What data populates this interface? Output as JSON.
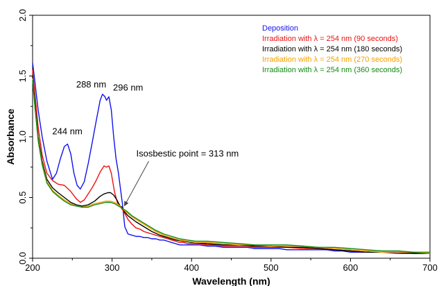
{
  "chart_data": {
    "type": "line",
    "xlabel": "Wavelength (nm)",
    "ylabel": "Absorbance",
    "xlim": [
      200,
      700
    ],
    "ylim": [
      0.0,
      2.0
    ],
    "x_ticks": [
      "200",
      "300",
      "400",
      "500",
      "600",
      "700"
    ],
    "y_ticks": [
      "0.0",
      "0.5",
      "1.0",
      "1.5",
      "2.0"
    ],
    "grid": false,
    "legend_position": "top-right",
    "series": [
      {
        "name": "Deposition",
        "color": "#1010ee",
        "x": [
          200,
          203,
          207,
          212,
          218,
          225,
          230,
          235,
          240,
          244,
          248,
          252,
          256,
          260,
          265,
          270,
          275,
          280,
          285,
          288,
          291,
          293,
          296,
          299,
          302,
          305,
          308,
          311,
          313,
          316,
          320,
          325,
          330,
          335,
          340,
          345,
          350,
          355,
          360,
          365,
          370,
          375,
          380,
          385,
          390,
          395,
          400,
          410,
          420,
          430,
          440,
          450,
          460,
          470,
          480,
          490,
          500,
          510,
          520,
          530,
          540,
          550,
          560,
          570,
          580,
          590,
          600,
          620,
          640,
          660,
          680,
          700
        ],
        "y": [
          1.61,
          1.45,
          1.22,
          1.0,
          0.8,
          0.65,
          0.7,
          0.82,
          0.92,
          0.94,
          0.86,
          0.7,
          0.6,
          0.57,
          0.63,
          0.78,
          0.95,
          1.13,
          1.3,
          1.35,
          1.33,
          1.3,
          1.33,
          1.22,
          1.0,
          0.82,
          0.7,
          0.55,
          0.45,
          0.26,
          0.2,
          0.19,
          0.18,
          0.18,
          0.17,
          0.17,
          0.16,
          0.16,
          0.15,
          0.15,
          0.14,
          0.13,
          0.12,
          0.11,
          0.11,
          0.11,
          0.11,
          0.11,
          0.1,
          0.1,
          0.09,
          0.09,
          0.09,
          0.09,
          0.08,
          0.08,
          0.08,
          0.08,
          0.07,
          0.07,
          0.07,
          0.07,
          0.07,
          0.07,
          0.06,
          0.06,
          0.05,
          0.05,
          0.05,
          0.04,
          0.04,
          0.04
        ]
      },
      {
        "name": "Irradiation with λ = 254 nm (90 seconds)",
        "color": "#ee1010",
        "x": [
          200,
          203,
          207,
          212,
          218,
          225,
          232,
          240,
          248,
          255,
          260,
          265,
          270,
          275,
          280,
          285,
          290,
          293,
          296,
          299,
          303,
          307,
          311,
          315,
          320,
          325,
          330,
          335,
          340,
          345,
          350,
          355,
          360,
          365,
          370,
          375,
          380,
          385,
          390,
          395,
          400,
          410,
          420,
          430,
          440,
          450,
          460,
          470,
          480,
          490,
          500,
          520,
          540,
          560,
          580,
          600,
          620,
          640,
          660,
          680,
          700
        ],
        "y": [
          1.55,
          1.35,
          1.08,
          0.85,
          0.7,
          0.64,
          0.61,
          0.6,
          0.55,
          0.49,
          0.46,
          0.48,
          0.53,
          0.58,
          0.64,
          0.71,
          0.76,
          0.75,
          0.76,
          0.7,
          0.55,
          0.45,
          0.42,
          0.38,
          0.32,
          0.28,
          0.25,
          0.24,
          0.22,
          0.21,
          0.2,
          0.19,
          0.18,
          0.17,
          0.16,
          0.15,
          0.14,
          0.13,
          0.13,
          0.12,
          0.12,
          0.12,
          0.11,
          0.11,
          0.1,
          0.1,
          0.1,
          0.1,
          0.09,
          0.09,
          0.09,
          0.09,
          0.08,
          0.08,
          0.07,
          0.06,
          0.05,
          0.05,
          0.05,
          0.04,
          0.04
        ]
      },
      {
        "name": "Irradiation with λ = 254 nm (180 seconds)",
        "color": "#000000",
        "x": [
          200,
          203,
          207,
          212,
          218,
          225,
          232,
          240,
          248,
          255,
          262,
          270,
          278,
          285,
          290,
          295,
          298,
          302,
          306,
          310,
          313,
          316,
          320,
          330,
          340,
          350,
          360,
          370,
          380,
          390,
          400,
          420,
          440,
          460,
          480,
          500,
          520,
          540,
          560,
          580,
          600,
          620,
          640,
          660,
          680,
          700
        ],
        "y": [
          1.5,
          1.28,
          1.0,
          0.8,
          0.65,
          0.58,
          0.54,
          0.5,
          0.46,
          0.44,
          0.43,
          0.44,
          0.47,
          0.51,
          0.53,
          0.54,
          0.54,
          0.52,
          0.48,
          0.43,
          0.42,
          0.38,
          0.35,
          0.3,
          0.26,
          0.22,
          0.19,
          0.17,
          0.15,
          0.14,
          0.13,
          0.12,
          0.11,
          0.11,
          0.1,
          0.1,
          0.09,
          0.09,
          0.08,
          0.07,
          0.06,
          0.05,
          0.05,
          0.05,
          0.04,
          0.04
        ]
      },
      {
        "name": "Irradiation with λ = 254 nm (270 seconds)",
        "color": "#f5a000",
        "x": [
          200,
          203,
          207,
          212,
          218,
          225,
          232,
          240,
          248,
          255,
          262,
          270,
          278,
          285,
          292,
          298,
          303,
          308,
          313,
          318,
          325,
          335,
          345,
          355,
          365,
          375,
          385,
          395,
          405,
          420,
          440,
          460,
          480,
          500,
          520,
          540,
          560,
          580,
          600,
          620,
          640,
          660,
          680,
          700
        ],
        "y": [
          1.48,
          1.25,
          0.98,
          0.78,
          0.63,
          0.56,
          0.52,
          0.48,
          0.45,
          0.43,
          0.42,
          0.43,
          0.45,
          0.46,
          0.47,
          0.47,
          0.46,
          0.44,
          0.41,
          0.38,
          0.34,
          0.3,
          0.26,
          0.22,
          0.19,
          0.17,
          0.15,
          0.14,
          0.13,
          0.13,
          0.12,
          0.11,
          0.11,
          0.1,
          0.1,
          0.1,
          0.09,
          0.08,
          0.07,
          0.06,
          0.05,
          0.05,
          0.05,
          0.04
        ]
      },
      {
        "name": "Irradiation with λ = 254 nm (360 seconds)",
        "color": "#138a13",
        "x": [
          200,
          203,
          207,
          212,
          218,
          225,
          232,
          240,
          248,
          255,
          262,
          270,
          278,
          285,
          292,
          298,
          303,
          308,
          313,
          318,
          325,
          335,
          345,
          355,
          365,
          375,
          385,
          395,
          405,
          420,
          440,
          460,
          480,
          500,
          520,
          540,
          560,
          580,
          600,
          620,
          640,
          660,
          680,
          700
        ],
        "y": [
          1.47,
          1.24,
          0.97,
          0.77,
          0.62,
          0.55,
          0.51,
          0.47,
          0.44,
          0.43,
          0.42,
          0.42,
          0.44,
          0.45,
          0.46,
          0.46,
          0.45,
          0.43,
          0.41,
          0.39,
          0.35,
          0.31,
          0.27,
          0.23,
          0.2,
          0.18,
          0.16,
          0.15,
          0.14,
          0.14,
          0.13,
          0.12,
          0.11,
          0.11,
          0.11,
          0.1,
          0.09,
          0.09,
          0.08,
          0.07,
          0.06,
          0.06,
          0.05,
          0.05
        ]
      }
    ],
    "peak_labels": [
      {
        "text": "244 nm",
        "x": 244,
        "y": 0.94
      },
      {
        "text": "288 nm",
        "x": 288,
        "y": 1.35
      },
      {
        "text": "296 nm",
        "x": 296,
        "y": 1.33
      }
    ],
    "annotation": {
      "text": "Isosbestic point = 313 nm",
      "x": 313,
      "y": 0.41
    }
  }
}
